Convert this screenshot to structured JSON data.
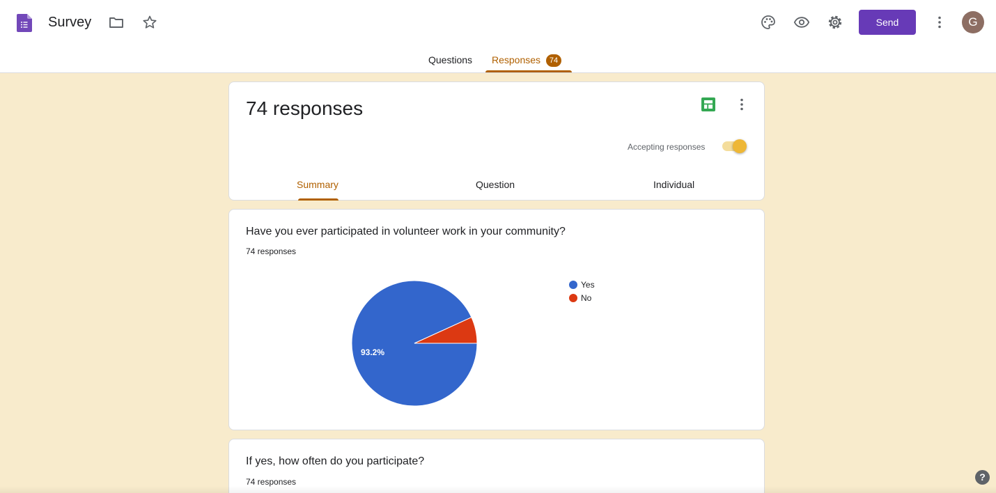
{
  "header": {
    "title": "Survey",
    "send_label": "Send",
    "avatar_initial": "G",
    "tabs": [
      {
        "label": "Questions"
      },
      {
        "label": "Responses",
        "badge": "74"
      }
    ]
  },
  "summary": {
    "title": "74 responses",
    "accepting_label": "Accepting responses",
    "accepting_on": true,
    "tabs": [
      {
        "label": "Summary"
      },
      {
        "label": "Question"
      },
      {
        "label": "Individual"
      }
    ]
  },
  "questions": [
    {
      "title": "Have you ever participated in volunteer work in your community?",
      "count": "74 responses"
    },
    {
      "title": "If yes, how often do you participate?",
      "count": "74 responses"
    }
  ],
  "chart_data": {
    "type": "pie",
    "categories": [
      "Yes",
      "No"
    ],
    "values": [
      93.2,
      6.8
    ],
    "colors": [
      "#3366cc",
      "#dc3912"
    ],
    "data_labels": [
      "93.2%",
      ""
    ],
    "legend_position": "right"
  },
  "colors": {
    "accent": "#b06000",
    "send": "#673ab7",
    "background": "#f8ebcc",
    "toggle_thumb": "#eeb736"
  },
  "icons": [
    "forms-logo-icon",
    "folder-icon",
    "star-icon",
    "palette-icon",
    "eye-icon",
    "gear-icon",
    "more-vert-icon",
    "sheets-icon",
    "help-icon"
  ]
}
